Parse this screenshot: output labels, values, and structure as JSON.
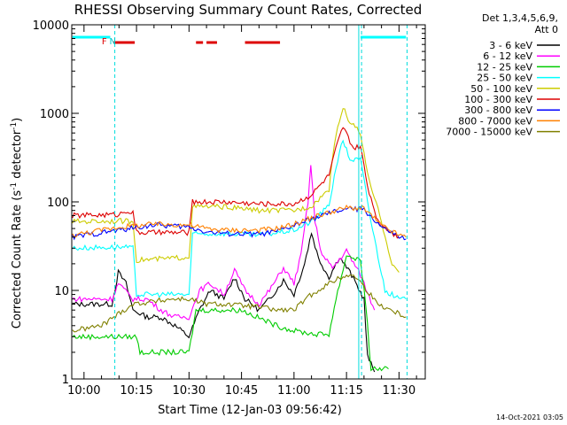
{
  "chart_data": {
    "type": "line",
    "title": "RHESSI Observing Summary Count Rates, Corrected",
    "xlabel": "Start Time (12-Jan-03 09:56:42)",
    "ylabel_main": "Corrected Count Rate (s",
    "ylabel_sup1": "-1",
    "ylabel_mid": " detector",
    "ylabel_sup2": "-1",
    "ylabel_end": ")",
    "yscale": "log",
    "ylim": [
      1,
      10000
    ],
    "xlim_min": [
      -3.5,
      37.5
    ],
    "y_ticks": [
      {
        "v": 1,
        "label": "1"
      },
      {
        "v": 10,
        "label": "10"
      },
      {
        "v": 100,
        "label": "100"
      },
      {
        "v": 1000,
        "label": "1000"
      },
      {
        "v": 10000,
        "label": "10000"
      }
    ],
    "x_ticks": [
      {
        "t": 0,
        "label": "10:00"
      },
      {
        "t": 15,
        "label": "10:15"
      },
      {
        "t": 30,
        "label": "10:30"
      },
      {
        "t": 45,
        "label": "10:45"
      },
      {
        "t": 60,
        "label": "11:00"
      },
      {
        "t": 75,
        "label": "11:15"
      },
      {
        "t": 90,
        "label": "11:30"
      }
    ],
    "legend_header_1": "Det 1,3,4,5,6,9,",
    "legend_header_2": "Att 0",
    "legend_position": "right",
    "series": [
      {
        "name": "3 - 6 keV",
        "color": "#000000",
        "points": [
          [
            -3.3,
            7
          ],
          [
            8,
            7
          ],
          [
            9.8,
            16
          ],
          [
            12,
            12
          ],
          [
            14,
            6
          ],
          [
            18,
            5
          ],
          [
            22,
            5
          ],
          [
            26,
            4
          ],
          [
            30,
            3
          ],
          [
            33,
            6
          ],
          [
            36,
            10
          ],
          [
            40,
            8
          ],
          [
            43,
            14
          ],
          [
            46,
            8
          ],
          [
            50,
            6
          ],
          [
            53,
            8
          ],
          [
            57,
            13
          ],
          [
            60,
            9
          ],
          [
            63,
            20
          ],
          [
            65,
            45
          ],
          [
            67,
            23
          ],
          [
            70,
            14
          ],
          [
            73,
            24
          ],
          [
            76,
            16
          ],
          [
            80,
            8
          ],
          [
            81,
            1.8
          ],
          [
            83,
            1.2
          ]
        ]
      },
      {
        "name": "6 - 12 keV",
        "color": "#ff00ff",
        "points": [
          [
            -3.3,
            8
          ],
          [
            8,
            8
          ],
          [
            9.8,
            12
          ],
          [
            14,
            8
          ],
          [
            18,
            8
          ],
          [
            22,
            6
          ],
          [
            26,
            5
          ],
          [
            30,
            5
          ],
          [
            33,
            10
          ],
          [
            36,
            12
          ],
          [
            40,
            9
          ],
          [
            43,
            17
          ],
          [
            46,
            10
          ],
          [
            50,
            7
          ],
          [
            53,
            10
          ],
          [
            57,
            18
          ],
          [
            60,
            12
          ],
          [
            62,
            25
          ],
          [
            64,
            100
          ],
          [
            64.8,
            260
          ],
          [
            66,
            60
          ],
          [
            68,
            25
          ],
          [
            71,
            18
          ],
          [
            75,
            28
          ],
          [
            79,
            15
          ],
          [
            83,
            6
          ]
        ]
      },
      {
        "name": "12 - 25 keV",
        "color": "#00cc00",
        "points": [
          [
            -3.3,
            3
          ],
          [
            15,
            3
          ],
          [
            16,
            2
          ],
          [
            22,
            2
          ],
          [
            30,
            2
          ],
          [
            32,
            6
          ],
          [
            45,
            6
          ],
          [
            55,
            4
          ],
          [
            60,
            3.5
          ],
          [
            66,
            3.2
          ],
          [
            70,
            3.2
          ],
          [
            72,
            8
          ],
          [
            75,
            25
          ],
          [
            79,
            22
          ],
          [
            80,
            10
          ],
          [
            81,
            4
          ],
          [
            82,
            1.3
          ],
          [
            87,
            1.3
          ]
        ]
      },
      {
        "name": "25 - 50 keV",
        "color": "#00ffff",
        "points": [
          [
            -3.3,
            30
          ],
          [
            10,
            31
          ],
          [
            14,
            30
          ],
          [
            15,
            9
          ],
          [
            25,
            9
          ],
          [
            30,
            9
          ],
          [
            31,
            43
          ],
          [
            40,
            44
          ],
          [
            50,
            42
          ],
          [
            60,
            48
          ],
          [
            65,
            60
          ],
          [
            70,
            90
          ],
          [
            72,
            250
          ],
          [
            74,
            500
          ],
          [
            76,
            300
          ],
          [
            79,
            300
          ],
          [
            82,
            60
          ],
          [
            86,
            10
          ],
          [
            90,
            8
          ],
          [
            92,
            8
          ]
        ]
      },
      {
        "name": "50 - 100 keV",
        "color": "#cccc00",
        "points": [
          [
            -3.3,
            60
          ],
          [
            10,
            61
          ],
          [
            14,
            60
          ],
          [
            15,
            22
          ],
          [
            25,
            23
          ],
          [
            30,
            24
          ],
          [
            31,
            88
          ],
          [
            40,
            88
          ],
          [
            50,
            80
          ],
          [
            60,
            80
          ],
          [
            65,
            90
          ],
          [
            70,
            140
          ],
          [
            72,
            600
          ],
          [
            74,
            1150
          ],
          [
            76,
            800
          ],
          [
            79,
            600
          ],
          [
            81,
            200
          ],
          [
            85,
            60
          ],
          [
            88,
            20
          ],
          [
            90,
            16
          ]
        ]
      },
      {
        "name": "100 - 300 keV",
        "color": "#dd0000",
        "points": [
          [
            -3.3,
            70
          ],
          [
            10,
            72
          ],
          [
            12,
            80
          ],
          [
            14,
            75
          ],
          [
            15,
            45
          ],
          [
            25,
            45
          ],
          [
            30,
            45
          ],
          [
            31,
            100
          ],
          [
            40,
            100
          ],
          [
            50,
            95
          ],
          [
            60,
            95
          ],
          [
            65,
            120
          ],
          [
            70,
            200
          ],
          [
            72,
            400
          ],
          [
            74,
            700
          ],
          [
            77,
            400
          ],
          [
            79,
            420
          ],
          [
            81,
            150
          ],
          [
            84,
            60
          ],
          [
            88,
            45
          ],
          [
            90,
            40
          ]
        ]
      },
      {
        "name": "300 - 800 keV",
        "color": "#0000ff",
        "points": [
          [
            -3.3,
            40
          ],
          [
            10,
            48
          ],
          [
            20,
            55
          ],
          [
            30,
            52
          ],
          [
            35,
            46
          ],
          [
            40,
            44
          ],
          [
            50,
            43
          ],
          [
            55,
            46
          ],
          [
            60,
            54
          ],
          [
            65,
            64
          ],
          [
            70,
            74
          ],
          [
            75,
            84
          ],
          [
            80,
            82
          ],
          [
            85,
            52
          ],
          [
            90,
            40
          ],
          [
            92,
            38
          ]
        ]
      },
      {
        "name": "800 - 7000 keV",
        "color": "#ff8000",
        "points": [
          [
            -3.3,
            42
          ],
          [
            5,
            48
          ],
          [
            10,
            52
          ],
          [
            20,
            56
          ],
          [
            30,
            55
          ],
          [
            35,
            50
          ],
          [
            40,
            48
          ],
          [
            50,
            48
          ],
          [
            55,
            50
          ],
          [
            60,
            56
          ],
          [
            65,
            66
          ],
          [
            70,
            76
          ],
          [
            75,
            86
          ],
          [
            80,
            84
          ],
          [
            85,
            54
          ],
          [
            90,
            42
          ],
          [
            92,
            40
          ]
        ]
      },
      {
        "name": "7000 - 15000 keV",
        "color": "#808000",
        "points": [
          [
            -3.3,
            3.5
          ],
          [
            5,
            4
          ],
          [
            10,
            5.5
          ],
          [
            14,
            7
          ],
          [
            20,
            7.5
          ],
          [
            25,
            8
          ],
          [
            30,
            8
          ],
          [
            35,
            7
          ],
          [
            40,
            7
          ],
          [
            50,
            6.5
          ],
          [
            55,
            6
          ],
          [
            60,
            6
          ],
          [
            65,
            9
          ],
          [
            70,
            12
          ],
          [
            75,
            15
          ],
          [
            78,
            14
          ],
          [
            80,
            11
          ],
          [
            84,
            7
          ],
          [
            88,
            6
          ],
          [
            92,
            5
          ]
        ]
      }
    ],
    "markers": [
      {
        "label": "F",
        "t": 5.8,
        "color": "#dd0000"
      },
      {
        "label": "N",
        "t": 8.2,
        "color": "#00cccc"
      }
    ]
  },
  "timestamp": "14-Oct-2021 03:05"
}
